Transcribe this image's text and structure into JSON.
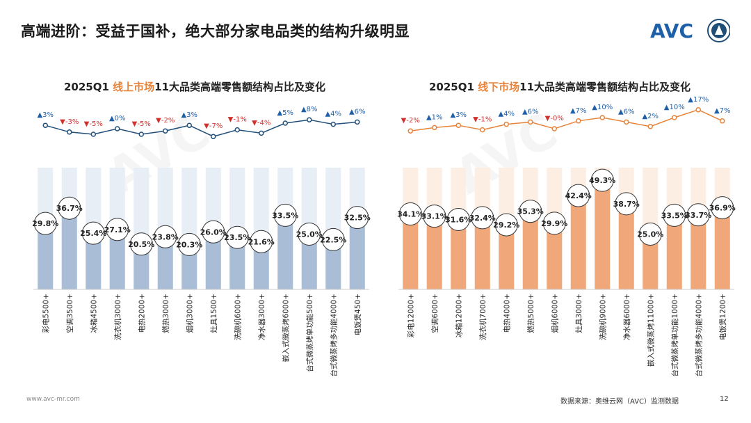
{
  "page": {
    "title": "高端进阶：受益于国补，绝大部分家电品类的结构升级明显",
    "logo_text": "AVC",
    "source": "数据来源：奥维云网（AVC）监测数据",
    "page_number": "12",
    "website": "www.avc-mr.com",
    "colors": {
      "accent": "#e8833a",
      "blue": "#1f4e79",
      "up": "#1f5fa8",
      "down": "#d0312d",
      "online_bar": "#a9bdd6",
      "offline_bar": "#f0a77a"
    }
  },
  "chart_data": [
    {
      "type": "bar",
      "title_prefix": "2025Q1 ",
      "title_highlight": "线上市场",
      "title_suffix": "11大品类高端零售额结构占比及变化",
      "categories": [
        "彩电5500+",
        "空调3500+",
        "冰箱4500+",
        "洗衣机3000+",
        "电热2000+",
        "燃热3000+",
        "烟机3000+",
        "灶具1500+",
        "洗碗机6000+",
        "净水器3000+",
        "嵌入式微蒸烤6000+",
        "台式微蒸烤单功能500+",
        "台式微蒸烤多功能4000+",
        "电饭煲450+"
      ],
      "values": [
        29.8,
        36.7,
        25.4,
        27.1,
        20.5,
        23.8,
        20.3,
        26.0,
        23.5,
        21.6,
        33.5,
        25.0,
        22.5,
        32.5
      ],
      "value_labels": [
        "29.8%",
        "36.7%",
        "25.4%",
        "27.1%",
        "20.5%",
        "23.8%",
        "20.3%",
        "26.0%",
        "23.5%",
        "21.6%",
        "33.5%",
        "25.0%",
        "22.5%",
        "32.5%"
      ],
      "changes": [
        3,
        -3,
        -5,
        0,
        -5,
        -2,
        3,
        -7,
        -1,
        -4,
        5,
        8,
        4,
        6
      ],
      "change_labels": [
        "▲3%",
        "▼-3%",
        "▼-5%",
        "▲0%",
        "▼-5%",
        "▼-2%",
        "▲3%",
        "▼-7%",
        "▼-1%",
        "▼-4%",
        "▲5%",
        "▲8%",
        "▲4%",
        "▲6%"
      ],
      "ylim": [
        0,
        50
      ],
      "bar_color": "#a9bdd6",
      "bg_color": "#e8eef6",
      "line_color": "#1f4e79"
    },
    {
      "type": "bar",
      "title_prefix": "2025Q1 ",
      "title_highlight": "线下市场",
      "title_suffix": "11大品类高端零售额结构占比及变化",
      "categories": [
        "彩电12000+",
        "空调6000+",
        "冰箱12000+",
        "洗衣机7000+",
        "电热4000+",
        "燃热5000+",
        "烟机6000+",
        "灶具3000+",
        "洗碗机9000+",
        "净水器6000+",
        "嵌入式微蒸烤11000+",
        "台式微蒸烤单功能1000+",
        "台式微蒸烤多功能4000+",
        "电饭煲1200+"
      ],
      "values": [
        34.1,
        33.1,
        31.6,
        32.4,
        29.2,
        35.3,
        29.9,
        42.4,
        49.3,
        38.7,
        25.0,
        33.5,
        33.7,
        36.9
      ],
      "value_labels": [
        "34.1%",
        "33.1%",
        "31.6%",
        "32.4%",
        "29.2%",
        "35.3%",
        "29.9%",
        "42.4%",
        "49.3%",
        "38.7%",
        "25.0%",
        "33.5%",
        "33.7%",
        "36.9%"
      ],
      "changes": [
        -2,
        1,
        3,
        -1,
        4,
        6,
        0,
        7,
        10,
        6,
        2,
        10,
        17,
        7
      ],
      "change_labels": [
        "▼-2%",
        "▲1%",
        "▲3%",
        "▼-1%",
        "▲4%",
        "▲6%",
        "▼-0%",
        "▲7%",
        "▲10%",
        "▲6%",
        "▲2%",
        "▲10%",
        "▲17%",
        "▲7%"
      ],
      "ylim": [
        0,
        50
      ],
      "bar_color": "#f0a77a",
      "bg_color": "#fdeee3",
      "line_color": "#e8833a"
    }
  ]
}
